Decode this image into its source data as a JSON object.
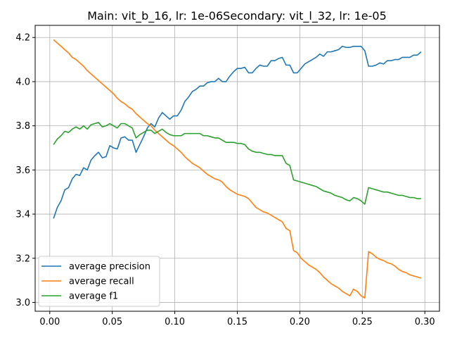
{
  "chart_data": {
    "type": "line",
    "title": "Main: vit_b_16, lr: 1e-06Secondary: vit_l_32, lr: 1e-05",
    "xlabel": "",
    "ylabel": "",
    "xlim": [
      -0.0117,
      0.3117
    ],
    "ylim": [
      2.96,
      4.255
    ],
    "xticks": [
      0.0,
      0.05,
      0.1,
      0.15,
      0.2,
      0.25,
      0.3
    ],
    "xtick_labels": [
      "0.00",
      "0.05",
      "0.10",
      "0.15",
      "0.20",
      "0.25",
      "0.30"
    ],
    "yticks": [
      3.0,
      3.2,
      3.4,
      3.6,
      3.8,
      4.0,
      4.2
    ],
    "ytick_labels": [
      "3.0",
      "3.2",
      "3.4",
      "3.6",
      "3.8",
      "4.0",
      "4.2"
    ],
    "grid": true,
    "legend_position": "lower-left",
    "series": [
      {
        "name": "average precision",
        "color": "#1f77b4",
        "points": [
          [
            0.003,
            3.38
          ],
          [
            0.006,
            3.43
          ],
          [
            0.009,
            3.46
          ],
          [
            0.012,
            3.51
          ],
          [
            0.015,
            3.52
          ],
          [
            0.018,
            3.56
          ],
          [
            0.021,
            3.58
          ],
          [
            0.024,
            3.575
          ],
          [
            0.027,
            3.61
          ],
          [
            0.03,
            3.6
          ],
          [
            0.033,
            3.645
          ],
          [
            0.036,
            3.665
          ],
          [
            0.039,
            3.68
          ],
          [
            0.042,
            3.655
          ],
          [
            0.045,
            3.66
          ],
          [
            0.048,
            3.71
          ],
          [
            0.051,
            3.7
          ],
          [
            0.054,
            3.695
          ],
          [
            0.057,
            3.745
          ],
          [
            0.06,
            3.75
          ],
          [
            0.063,
            3.735
          ],
          [
            0.066,
            3.735
          ],
          [
            0.069,
            3.68
          ],
          [
            0.072,
            3.715
          ],
          [
            0.075,
            3.75
          ],
          [
            0.078,
            3.79
          ],
          [
            0.081,
            3.81
          ],
          [
            0.084,
            3.795
          ],
          [
            0.087,
            3.835
          ],
          [
            0.09,
            3.86
          ],
          [
            0.093,
            3.845
          ],
          [
            0.096,
            3.83
          ],
          [
            0.099,
            3.845
          ],
          [
            0.102,
            3.845
          ],
          [
            0.105,
            3.87
          ],
          [
            0.108,
            3.91
          ],
          [
            0.111,
            3.93
          ],
          [
            0.114,
            3.955
          ],
          [
            0.117,
            3.965
          ],
          [
            0.12,
            3.98
          ],
          [
            0.123,
            3.98
          ],
          [
            0.126,
            3.995
          ],
          [
            0.129,
            4.0
          ],
          [
            0.132,
            4.0
          ],
          [
            0.135,
            4.015
          ],
          [
            0.138,
            4.0
          ],
          [
            0.141,
            4.0
          ],
          [
            0.144,
            4.025
          ],
          [
            0.147,
            4.045
          ],
          [
            0.15,
            4.06
          ],
          [
            0.153,
            4.06
          ],
          [
            0.156,
            4.065
          ],
          [
            0.159,
            4.04
          ],
          [
            0.162,
            4.04
          ],
          [
            0.165,
            4.06
          ],
          [
            0.168,
            4.075
          ],
          [
            0.171,
            4.07
          ],
          [
            0.174,
            4.07
          ],
          [
            0.177,
            4.095
          ],
          [
            0.18,
            4.095
          ],
          [
            0.183,
            4.105
          ],
          [
            0.186,
            4.11
          ],
          [
            0.189,
            4.075
          ],
          [
            0.192,
            4.075
          ],
          [
            0.195,
            4.04
          ],
          [
            0.198,
            4.04
          ],
          [
            0.201,
            4.06
          ],
          [
            0.204,
            4.08
          ],
          [
            0.207,
            4.09
          ],
          [
            0.21,
            4.1
          ],
          [
            0.213,
            4.11
          ],
          [
            0.216,
            4.125
          ],
          [
            0.219,
            4.115
          ],
          [
            0.222,
            4.135
          ],
          [
            0.225,
            4.135
          ],
          [
            0.228,
            4.14
          ],
          [
            0.231,
            4.145
          ],
          [
            0.234,
            4.16
          ],
          [
            0.237,
            4.155
          ],
          [
            0.24,
            4.155
          ],
          [
            0.243,
            4.16
          ],
          [
            0.246,
            4.16
          ],
          [
            0.249,
            4.16
          ],
          [
            0.252,
            4.14
          ],
          [
            0.255,
            4.07
          ],
          [
            0.258,
            4.07
          ],
          [
            0.261,
            4.075
          ],
          [
            0.264,
            4.085
          ],
          [
            0.267,
            4.08
          ],
          [
            0.27,
            4.095
          ],
          [
            0.273,
            4.095
          ],
          [
            0.276,
            4.1
          ],
          [
            0.279,
            4.1
          ],
          [
            0.282,
            4.11
          ],
          [
            0.285,
            4.11
          ],
          [
            0.288,
            4.11
          ],
          [
            0.291,
            4.12
          ],
          [
            0.294,
            4.12
          ],
          [
            0.297,
            4.135
          ]
        ]
      },
      {
        "name": "average recall",
        "color": "#ff7f0e",
        "points": [
          [
            0.003,
            4.19
          ],
          [
            0.006,
            4.175
          ],
          [
            0.009,
            4.16
          ],
          [
            0.012,
            4.145
          ],
          [
            0.015,
            4.13
          ],
          [
            0.018,
            4.11
          ],
          [
            0.021,
            4.1
          ],
          [
            0.024,
            4.085
          ],
          [
            0.027,
            4.07
          ],
          [
            0.03,
            4.05
          ],
          [
            0.033,
            4.035
          ],
          [
            0.036,
            4.02
          ],
          [
            0.039,
            4.005
          ],
          [
            0.042,
            3.99
          ],
          [
            0.045,
            3.975
          ],
          [
            0.048,
            3.96
          ],
          [
            0.051,
            3.945
          ],
          [
            0.054,
            3.925
          ],
          [
            0.057,
            3.91
          ],
          [
            0.06,
            3.9
          ],
          [
            0.063,
            3.885
          ],
          [
            0.066,
            3.875
          ],
          [
            0.069,
            3.855
          ],
          [
            0.072,
            3.84
          ],
          [
            0.075,
            3.825
          ],
          [
            0.078,
            3.81
          ],
          [
            0.081,
            3.8
          ],
          [
            0.084,
            3.78
          ],
          [
            0.087,
            3.765
          ],
          [
            0.09,
            3.75
          ],
          [
            0.093,
            3.735
          ],
          [
            0.096,
            3.72
          ],
          [
            0.099,
            3.71
          ],
          [
            0.102,
            3.695
          ],
          [
            0.105,
            3.68
          ],
          [
            0.108,
            3.66
          ],
          [
            0.111,
            3.645
          ],
          [
            0.114,
            3.63
          ],
          [
            0.117,
            3.62
          ],
          [
            0.12,
            3.61
          ],
          [
            0.123,
            3.595
          ],
          [
            0.126,
            3.58
          ],
          [
            0.129,
            3.57
          ],
          [
            0.132,
            3.56
          ],
          [
            0.135,
            3.555
          ],
          [
            0.138,
            3.545
          ],
          [
            0.141,
            3.525
          ],
          [
            0.144,
            3.51
          ],
          [
            0.147,
            3.5
          ],
          [
            0.15,
            3.49
          ],
          [
            0.153,
            3.485
          ],
          [
            0.156,
            3.48
          ],
          [
            0.159,
            3.47
          ],
          [
            0.162,
            3.45
          ],
          [
            0.165,
            3.43
          ],
          [
            0.168,
            3.42
          ],
          [
            0.171,
            3.41
          ],
          [
            0.174,
            3.405
          ],
          [
            0.177,
            3.395
          ],
          [
            0.18,
            3.385
          ],
          [
            0.183,
            3.375
          ],
          [
            0.186,
            3.365
          ],
          [
            0.189,
            3.335
          ],
          [
            0.192,
            3.325
          ],
          [
            0.195,
            3.235
          ],
          [
            0.198,
            3.225
          ],
          [
            0.201,
            3.2
          ],
          [
            0.204,
            3.185
          ],
          [
            0.207,
            3.17
          ],
          [
            0.21,
            3.16
          ],
          [
            0.213,
            3.15
          ],
          [
            0.216,
            3.135
          ],
          [
            0.219,
            3.115
          ],
          [
            0.222,
            3.1
          ],
          [
            0.225,
            3.085
          ],
          [
            0.228,
            3.075
          ],
          [
            0.231,
            3.065
          ],
          [
            0.234,
            3.05
          ],
          [
            0.237,
            3.04
          ],
          [
            0.24,
            3.03
          ],
          [
            0.243,
            3.06
          ],
          [
            0.246,
            3.05
          ],
          [
            0.249,
            3.03
          ],
          [
            0.252,
            3.02
          ],
          [
            0.255,
            3.23
          ],
          [
            0.258,
            3.22
          ],
          [
            0.261,
            3.205
          ],
          [
            0.264,
            3.195
          ],
          [
            0.267,
            3.19
          ],
          [
            0.27,
            3.18
          ],
          [
            0.273,
            3.175
          ],
          [
            0.276,
            3.165
          ],
          [
            0.279,
            3.15
          ],
          [
            0.282,
            3.14
          ],
          [
            0.285,
            3.135
          ],
          [
            0.288,
            3.125
          ],
          [
            0.291,
            3.12
          ],
          [
            0.294,
            3.115
          ],
          [
            0.297,
            3.11
          ]
        ]
      },
      {
        "name": "average f1",
        "color": "#2ca02c",
        "points": [
          [
            0.003,
            3.715
          ],
          [
            0.006,
            3.74
          ],
          [
            0.009,
            3.755
          ],
          [
            0.012,
            3.775
          ],
          [
            0.015,
            3.77
          ],
          [
            0.018,
            3.785
          ],
          [
            0.021,
            3.795
          ],
          [
            0.024,
            3.785
          ],
          [
            0.027,
            3.8
          ],
          [
            0.03,
            3.785
          ],
          [
            0.033,
            3.805
          ],
          [
            0.036,
            3.81
          ],
          [
            0.039,
            3.815
          ],
          [
            0.042,
            3.795
          ],
          [
            0.045,
            3.8
          ],
          [
            0.048,
            3.81
          ],
          [
            0.051,
            3.8
          ],
          [
            0.054,
            3.79
          ],
          [
            0.057,
            3.81
          ],
          [
            0.06,
            3.81
          ],
          [
            0.063,
            3.8
          ],
          [
            0.066,
            3.79
          ],
          [
            0.069,
            3.745
          ],
          [
            0.072,
            3.76
          ],
          [
            0.075,
            3.77
          ],
          [
            0.078,
            3.78
          ],
          [
            0.081,
            3.78
          ],
          [
            0.084,
            3.765
          ],
          [
            0.087,
            3.775
          ],
          [
            0.09,
            3.785
          ],
          [
            0.093,
            3.77
          ],
          [
            0.096,
            3.76
          ],
          [
            0.099,
            3.755
          ],
          [
            0.102,
            3.755
          ],
          [
            0.105,
            3.755
          ],
          [
            0.108,
            3.765
          ],
          [
            0.111,
            3.765
          ],
          [
            0.114,
            3.765
          ],
          [
            0.117,
            3.765
          ],
          [
            0.12,
            3.765
          ],
          [
            0.123,
            3.755
          ],
          [
            0.126,
            3.755
          ],
          [
            0.129,
            3.75
          ],
          [
            0.132,
            3.745
          ],
          [
            0.135,
            3.745
          ],
          [
            0.138,
            3.735
          ],
          [
            0.141,
            3.725
          ],
          [
            0.144,
            3.725
          ],
          [
            0.147,
            3.725
          ],
          [
            0.15,
            3.72
          ],
          [
            0.153,
            3.72
          ],
          [
            0.156,
            3.715
          ],
          [
            0.159,
            3.695
          ],
          [
            0.162,
            3.685
          ],
          [
            0.165,
            3.68
          ],
          [
            0.168,
            3.68
          ],
          [
            0.171,
            3.675
          ],
          [
            0.174,
            3.67
          ],
          [
            0.177,
            3.67
          ],
          [
            0.18,
            3.665
          ],
          [
            0.183,
            3.665
          ],
          [
            0.186,
            3.665
          ],
          [
            0.189,
            3.63
          ],
          [
            0.192,
            3.62
          ],
          [
            0.195,
            3.555
          ],
          [
            0.198,
            3.55
          ],
          [
            0.201,
            3.545
          ],
          [
            0.204,
            3.54
          ],
          [
            0.207,
            3.535
          ],
          [
            0.21,
            3.53
          ],
          [
            0.213,
            3.525
          ],
          [
            0.216,
            3.515
          ],
          [
            0.219,
            3.505
          ],
          [
            0.222,
            3.5
          ],
          [
            0.225,
            3.495
          ],
          [
            0.228,
            3.485
          ],
          [
            0.231,
            3.48
          ],
          [
            0.234,
            3.475
          ],
          [
            0.237,
            3.465
          ],
          [
            0.24,
            3.46
          ],
          [
            0.243,
            3.475
          ],
          [
            0.246,
            3.47
          ],
          [
            0.249,
            3.46
          ],
          [
            0.252,
            3.445
          ],
          [
            0.255,
            3.52
          ],
          [
            0.258,
            3.515
          ],
          [
            0.261,
            3.51
          ],
          [
            0.264,
            3.505
          ],
          [
            0.267,
            3.5
          ],
          [
            0.27,
            3.5
          ],
          [
            0.273,
            3.495
          ],
          [
            0.276,
            3.49
          ],
          [
            0.279,
            3.485
          ],
          [
            0.282,
            3.485
          ],
          [
            0.285,
            3.48
          ],
          [
            0.288,
            3.475
          ],
          [
            0.291,
            3.475
          ],
          [
            0.294,
            3.47
          ],
          [
            0.297,
            3.47
          ]
        ]
      }
    ]
  }
}
